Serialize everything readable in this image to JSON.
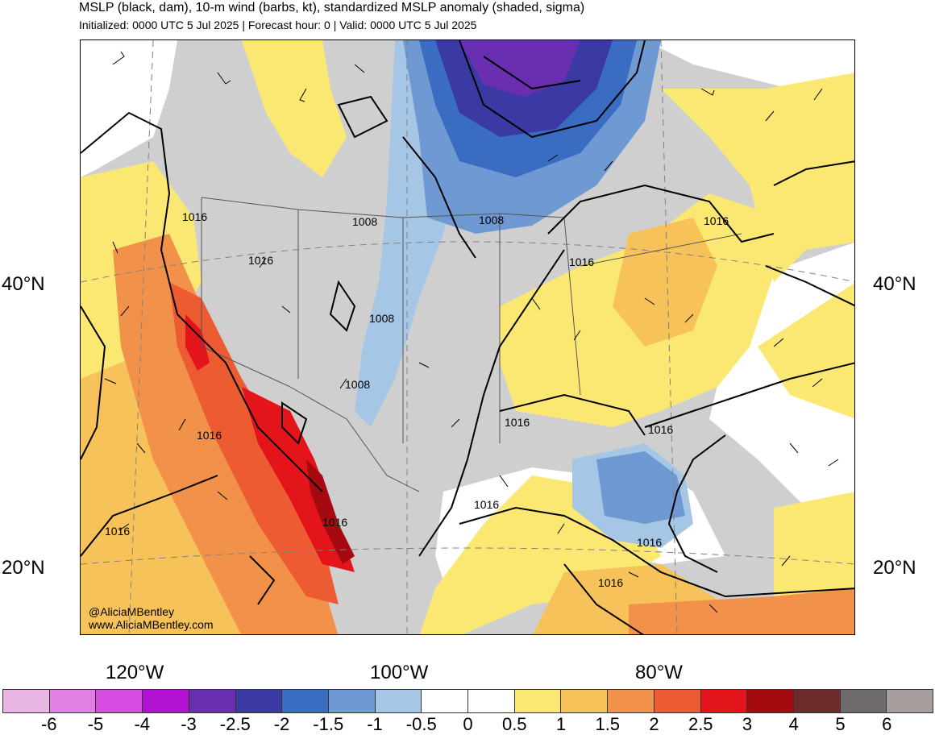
{
  "title": "MSLP (black, dam), 10-m wind (barbs, kt), standardized MSLP anomaly (shaded, sigma)",
  "subtitle": "Initialized: 0000 UTC 5 Jul 2025 | Forecast hour: 0 | Valid: 0000 UTC 5 Jul 2025",
  "lat_labels": [
    "40°N",
    "20°N"
  ],
  "lon_labels": [
    "120°W",
    "100°W",
    "80°W"
  ],
  "credit": {
    "handle": "@AliciaMBentley",
    "website": "www.AliciaMBentley.com"
  },
  "contour_labels": [
    "1016",
    "1016",
    "1008",
    "1008",
    "1016",
    "1016",
    "1008",
    "1008",
    "1016",
    "1016",
    "1016",
    "1016",
    "1016",
    "1016",
    "1016",
    "1016"
  ],
  "colorbar": {
    "ticks": [
      "-6",
      "-5",
      "-4",
      "-3",
      "-2.5",
      "-2",
      "-1.5",
      "-1",
      "-0.5",
      "0",
      "0.5",
      "1",
      "1.5",
      "2",
      "2.5",
      "3",
      "4",
      "5",
      "6"
    ],
    "colors": [
      "#e9b5e4",
      "#e27fe3",
      "#d54de0",
      "#b112d2",
      "#6a2fb0",
      "#3b3aa5",
      "#3a6dc2",
      "#6f99d3",
      "#a6c6e6",
      "#ffffff",
      "#ffffff",
      "#fbe873",
      "#f6c259",
      "#f2924a",
      "#ed5b33",
      "#e4141b",
      "#a50a10",
      "#6f2a2b",
      "#6f6b6b",
      "#a69d9d"
    ]
  }
}
